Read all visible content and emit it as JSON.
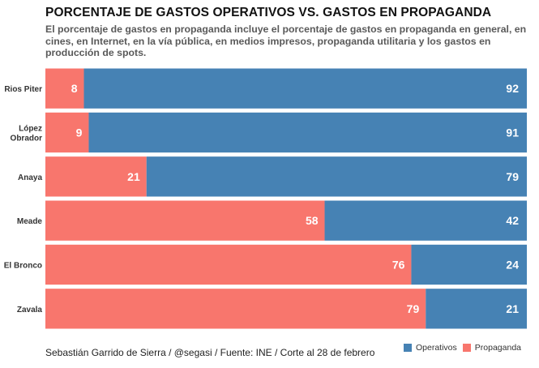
{
  "chart_data": {
    "type": "bar",
    "orientation": "horizontal",
    "stacked": true,
    "title": "PORCENTAJE DE GASTOS OPERATIVOS VS. GASTOS EN PROPAGANDA",
    "subtitle": "El porcentaje de gastos en propaganda incluye el porcentaje de gastos en propaganda en general, en cines, en Internet, en la vía pública, en medios impresos, propaganda utilitaria y los gastos en producción de spots.",
    "caption": "Sebastián Garrido de Sierra / @segasi / Fuente: INE / Corte al 28 de febrero",
    "categories": [
      "Rios Piter",
      "López Obrador",
      "Anaya",
      "Meade",
      "El Bronco",
      "Zavala"
    ],
    "category_display": [
      [
        "Rios Piter"
      ],
      [
        "López",
        "Obrador"
      ],
      [
        "Anaya"
      ],
      [
        "Meade"
      ],
      [
        "El Bronco"
      ],
      [
        "Zavala"
      ]
    ],
    "series": [
      {
        "name": "Propaganda",
        "color": "#F8766D",
        "values": [
          8,
          9,
          21,
          58,
          76,
          79
        ]
      },
      {
        "name": "Operativos",
        "color": "#4682B4",
        "values": [
          92,
          91,
          79,
          42,
          24,
          21
        ]
      }
    ],
    "xlim": [
      0,
      100
    ],
    "xlabel": "",
    "ylabel": "",
    "grid": false,
    "legend": {
      "position": "bottom-right",
      "entries": [
        "Operativos",
        "Propaganda"
      ]
    }
  }
}
